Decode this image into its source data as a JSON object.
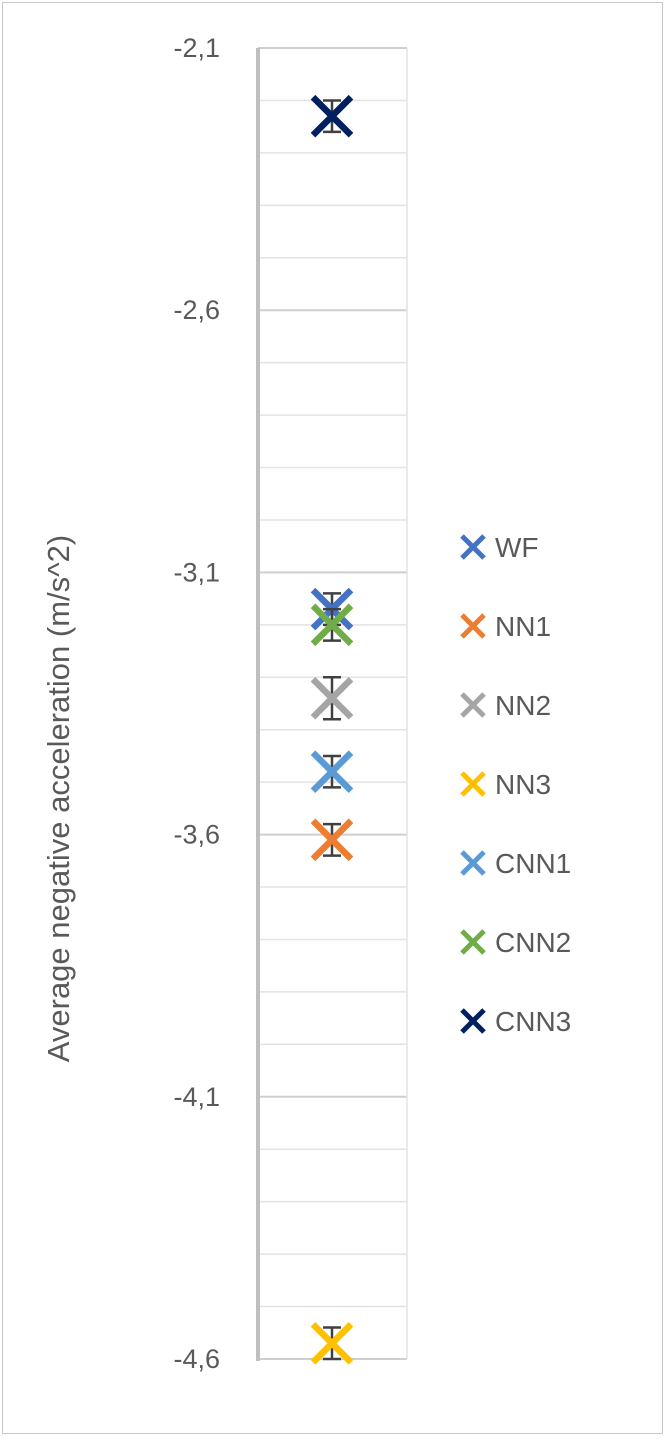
{
  "chart_data": {
    "type": "scatter",
    "title": "",
    "xlabel": "",
    "ylabel": "Average negative acceleration (m/s^2)",
    "ylim": [
      -4.6,
      -2.1
    ],
    "ytick_values": [
      -2.1,
      -2.6,
      -3.1,
      -3.6,
      -4.1,
      -4.6
    ],
    "ytick_labels": [
      "-2,1",
      "-2,6",
      "-3,1",
      "-3,6",
      "-4,1",
      "-4,6"
    ],
    "minor_grid_step": 0.1,
    "grid": true,
    "legend_position": "right",
    "marker": "x",
    "series": [
      {
        "name": "WF",
        "value": -3.17,
        "error": 0.03,
        "color": "#4472C4"
      },
      {
        "name": "NN1",
        "value": -3.61,
        "error": 0.03,
        "color": "#ED7D31"
      },
      {
        "name": "NN2",
        "value": -3.34,
        "error": 0.04,
        "color": "#A5A5A5"
      },
      {
        "name": "NN3",
        "value": -4.57,
        "error": 0.03,
        "color": "#FFC000"
      },
      {
        "name": "CNN1",
        "value": -3.48,
        "error": 0.03,
        "color": "#5B9BD5"
      },
      {
        "name": "CNN2",
        "value": -3.2,
        "error": 0.03,
        "color": "#70AD47"
      },
      {
        "name": "CNN3",
        "value": -2.23,
        "error": 0.03,
        "color": "#002060"
      }
    ]
  }
}
